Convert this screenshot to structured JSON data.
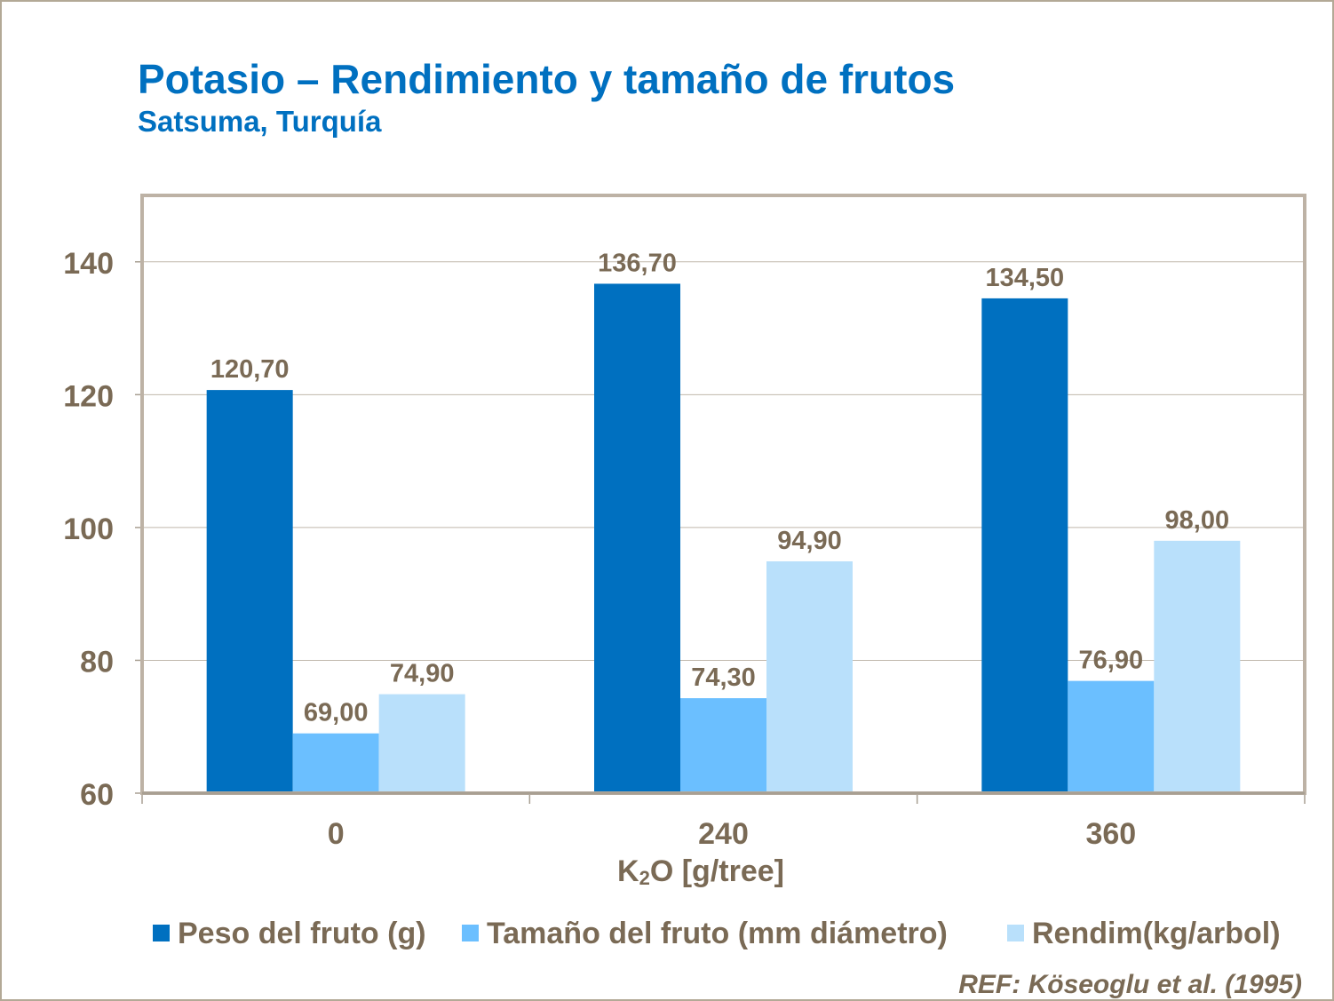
{
  "chart_data": {
    "type": "bar",
    "title": "Potasio – Rendimiento y tamaño de frutos",
    "subtitle": "Satsuma, Turquía",
    "xlabel": "K2O [g/tree]",
    "ylabel": "",
    "categories": [
      "0",
      "240",
      "360"
    ],
    "series": [
      {
        "name": "Peso del fruto (g)",
        "values": [
          120.7,
          136.7,
          134.5
        ],
        "labels": [
          "120,70",
          "136,70",
          "134,50"
        ],
        "color": "#0070c0"
      },
      {
        "name": "Tamaño del fruto (mm diámetro)",
        "values": [
          69.0,
          74.3,
          76.9
        ],
        "labels": [
          "69,00",
          "74,30",
          "76,90"
        ],
        "color": "#6bbfff"
      },
      {
        "name": "Rendim(kg/arbol)",
        "values": [
          74.9,
          94.9,
          98.0
        ],
        "labels": [
          "74,90",
          "94,90",
          "98,00"
        ],
        "color": "#b9e0fb"
      }
    ],
    "ylim": [
      60,
      150
    ],
    "yticks": [
      60,
      80,
      100,
      120,
      140
    ],
    "grid": true,
    "legend": "bottom",
    "reference": "REF: Köseoglu  et al. (1995)"
  }
}
